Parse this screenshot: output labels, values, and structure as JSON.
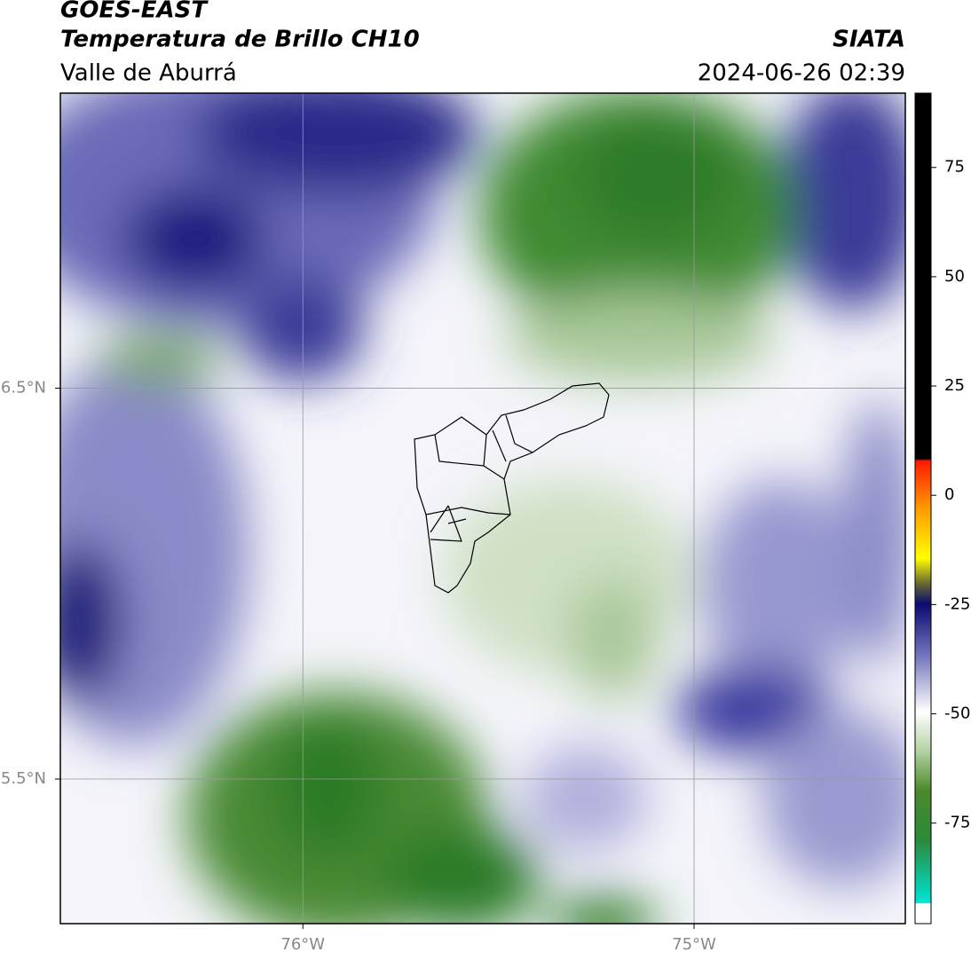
{
  "header": {
    "title": "GOES-EAST",
    "subtitle": "Temperatura de Brillo CH10",
    "region": "Valle de Aburrá",
    "source": "SIATA",
    "datetime": "2024-06-26 02:39"
  },
  "map": {
    "lonlim": [
      -76.62,
      -74.46
    ],
    "latlim": [
      5.13,
      7.255
    ],
    "lonticks": [
      {
        "value": -76,
        "label": "76°W"
      },
      {
        "value": -75,
        "label": "75°W"
      }
    ],
    "latticks": [
      {
        "value": 6.5,
        "label": "6.5°N"
      },
      {
        "value": 5.5,
        "label": "5.5°N"
      }
    ]
  },
  "colorbar": {
    "lim": [
      -98,
      92
    ],
    "ticks": [
      75,
      50,
      25,
      0,
      -25,
      -50,
      -75
    ]
  }
}
